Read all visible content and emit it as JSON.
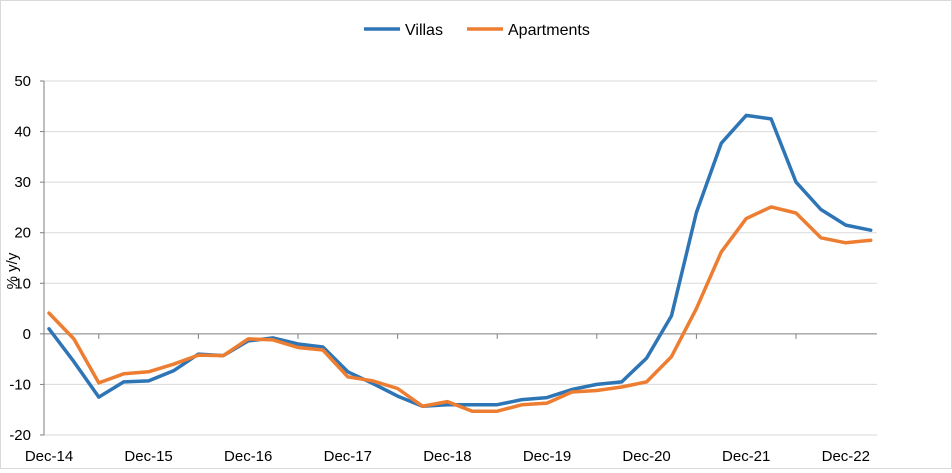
{
  "chart_data": {
    "type": "line",
    "title": "",
    "xlabel": "",
    "ylabel": "% y/y",
    "ylim": [
      -20,
      50
    ],
    "yticks": [
      -20,
      -10,
      0,
      10,
      20,
      30,
      40,
      50
    ],
    "grid": "horizontal",
    "legend_position": "top-center",
    "x_tick_labels": [
      "Dec-14",
      "Dec-15",
      "Dec-16",
      "Dec-17",
      "Dec-18",
      "Dec-19",
      "Dec-20",
      "Dec-21",
      "Dec-22"
    ],
    "x": [
      "Dec-14",
      "Mar-15",
      "Jun-15",
      "Sep-15",
      "Dec-15",
      "Mar-16",
      "Jun-16",
      "Sep-16",
      "Dec-16",
      "Mar-17",
      "Jun-17",
      "Sep-17",
      "Dec-17",
      "Mar-18",
      "Jun-18",
      "Sep-18",
      "Dec-18",
      "Mar-19",
      "Jun-19",
      "Sep-19",
      "Dec-19",
      "Mar-20",
      "Jun-20",
      "Sep-20",
      "Dec-20",
      "Mar-21",
      "Jun-21",
      "Sep-21",
      "Dec-21",
      "Mar-22",
      "Jun-22",
      "Sep-22",
      "Dec-22",
      "Mar-23"
    ],
    "series": [
      {
        "name": "Villas",
        "color": "#2e75b6",
        "values": [
          1,
          -5.5,
          -12.5,
          -9.5,
          -9.3,
          -7.3,
          -4,
          -4.3,
          -1.4,
          -0.8,
          -2,
          -2.6,
          -7.5,
          -9.8,
          -12.3,
          -14.3,
          -14,
          -14,
          -14,
          -13,
          -12.6,
          -11,
          -10,
          -9.5,
          -4.8,
          3.6,
          24,
          37.7,
          43.2,
          42.5,
          30,
          24.6,
          21.5,
          20.5
        ]
      },
      {
        "name": "Apartments",
        "color": "#ed7d31",
        "values": [
          4.1,
          -1,
          -9.7,
          -7.9,
          -7.5,
          -6,
          -4.2,
          -4.3,
          -1,
          -1.2,
          -2.7,
          -3.2,
          -8.5,
          -9.3,
          -10.8,
          -14.3,
          -13.4,
          -15.3,
          -15.3,
          -14,
          -13.7,
          -11.5,
          -11.2,
          -10.5,
          -9.5,
          -4.5,
          5,
          16.2,
          22.8,
          25.1,
          23.9,
          19,
          18,
          18.5
        ]
      }
    ]
  }
}
